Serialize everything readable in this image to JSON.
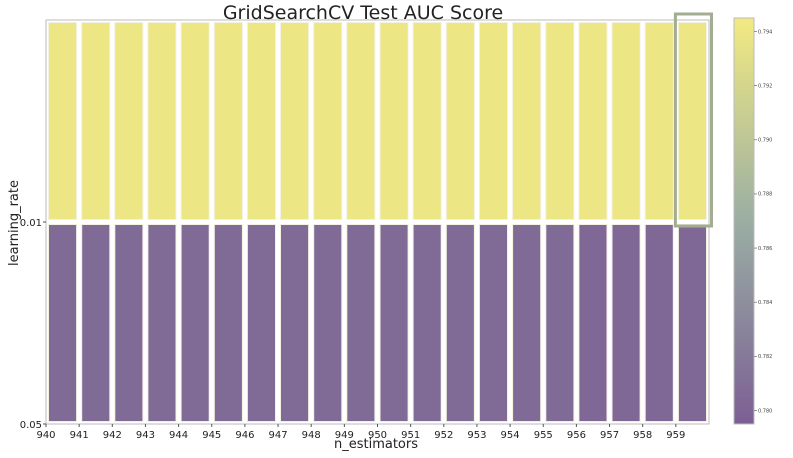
{
  "chart_data": {
    "type": "heatmap",
    "title": "GridSearchCV Test AUC Score",
    "xlabel": "n_estimators",
    "ylabel": "learning_rate",
    "x": [
      "940",
      "941",
      "942",
      "943",
      "944",
      "945",
      "946",
      "947",
      "948",
      "949",
      "950",
      "951",
      "952",
      "953",
      "954",
      "955",
      "956",
      "957",
      "958",
      "959"
    ],
    "y": [
      "0.01",
      "0.05"
    ],
    "values": [
      [
        0.794,
        0.794,
        0.794,
        0.794,
        0.794,
        0.794,
        0.794,
        0.794,
        0.794,
        0.794,
        0.794,
        0.794,
        0.794,
        0.794,
        0.794,
        0.794,
        0.794,
        0.794,
        0.794,
        0.794
      ],
      [
        0.7805,
        0.7805,
        0.7805,
        0.7805,
        0.7805,
        0.7805,
        0.7805,
        0.7805,
        0.7805,
        0.7805,
        0.7805,
        0.7805,
        0.7805,
        0.7805,
        0.7805,
        0.7805,
        0.7803,
        0.7803,
        0.7803,
        0.7803
      ]
    ],
    "colorbar": {
      "ticks": [
        "0.780",
        "0.782",
        "0.784",
        "0.786",
        "0.788",
        "0.790",
        "0.792",
        "0.794"
      ],
      "range": [
        0.7795,
        0.7945
      ],
      "colors": [
        "#7c5f94",
        "#9aaea3",
        "#f2ea82"
      ]
    },
    "highlight": {
      "x": "959",
      "y": "0.01",
      "color": "#a3ad91"
    },
    "grid": false
  }
}
